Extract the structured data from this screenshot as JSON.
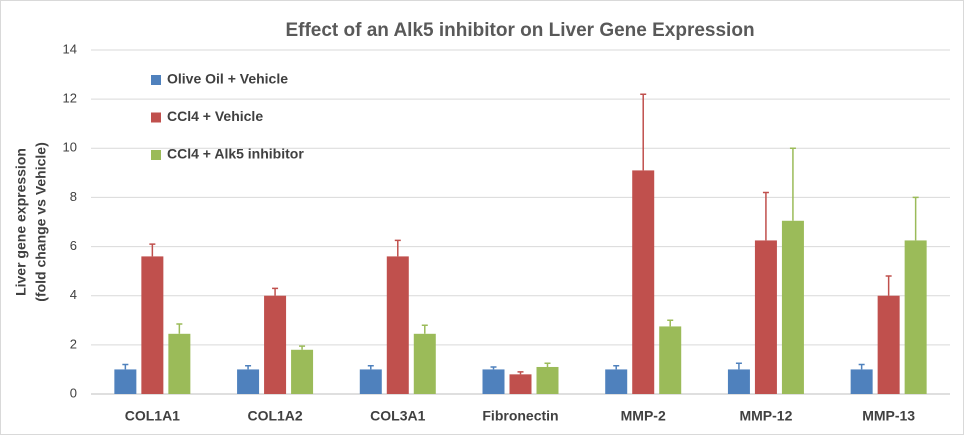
{
  "chart_data": {
    "type": "bar",
    "title": "Effect of an Alk5 inhibitor on Liver Gene Expression",
    "y_label": [
      "Liver gene expression",
      "(fold change vs Vehicle)"
    ],
    "categories": [
      "COL1A1",
      "COL1A2",
      "COL3A1",
      "Fibronectin",
      "MMP-2",
      "MMP-12",
      "MMP-13"
    ],
    "series": [
      {
        "name": "Olive Oil + Vehicle",
        "color": "#4f81bd",
        "values": [
          1.0,
          1.0,
          1.0,
          1.0,
          1.0,
          1.0,
          1.0
        ],
        "errors": [
          0.2,
          0.15,
          0.15,
          0.1,
          0.15,
          0.25,
          0.2
        ]
      },
      {
        "name": "CCl4 + Vehicle",
        "color": "#c0504d",
        "values": [
          5.6,
          4.0,
          5.6,
          0.8,
          9.1,
          6.25,
          4.0
        ],
        "errors": [
          0.5,
          0.3,
          0.65,
          0.1,
          3.1,
          1.95,
          0.8
        ]
      },
      {
        "name": "CCl4 + Alk5 inhibitor",
        "color": "#9bbb59",
        "values": [
          2.45,
          1.8,
          2.45,
          1.1,
          2.75,
          7.05,
          6.25
        ],
        "errors": [
          0.4,
          0.15,
          0.35,
          0.15,
          0.25,
          2.95,
          1.75
        ]
      }
    ],
    "ylim": [
      0,
      14
    ],
    "yticks": [
      0,
      2,
      4,
      6,
      8,
      10,
      12,
      14
    ],
    "grid": true,
    "legend": "upper-left"
  }
}
